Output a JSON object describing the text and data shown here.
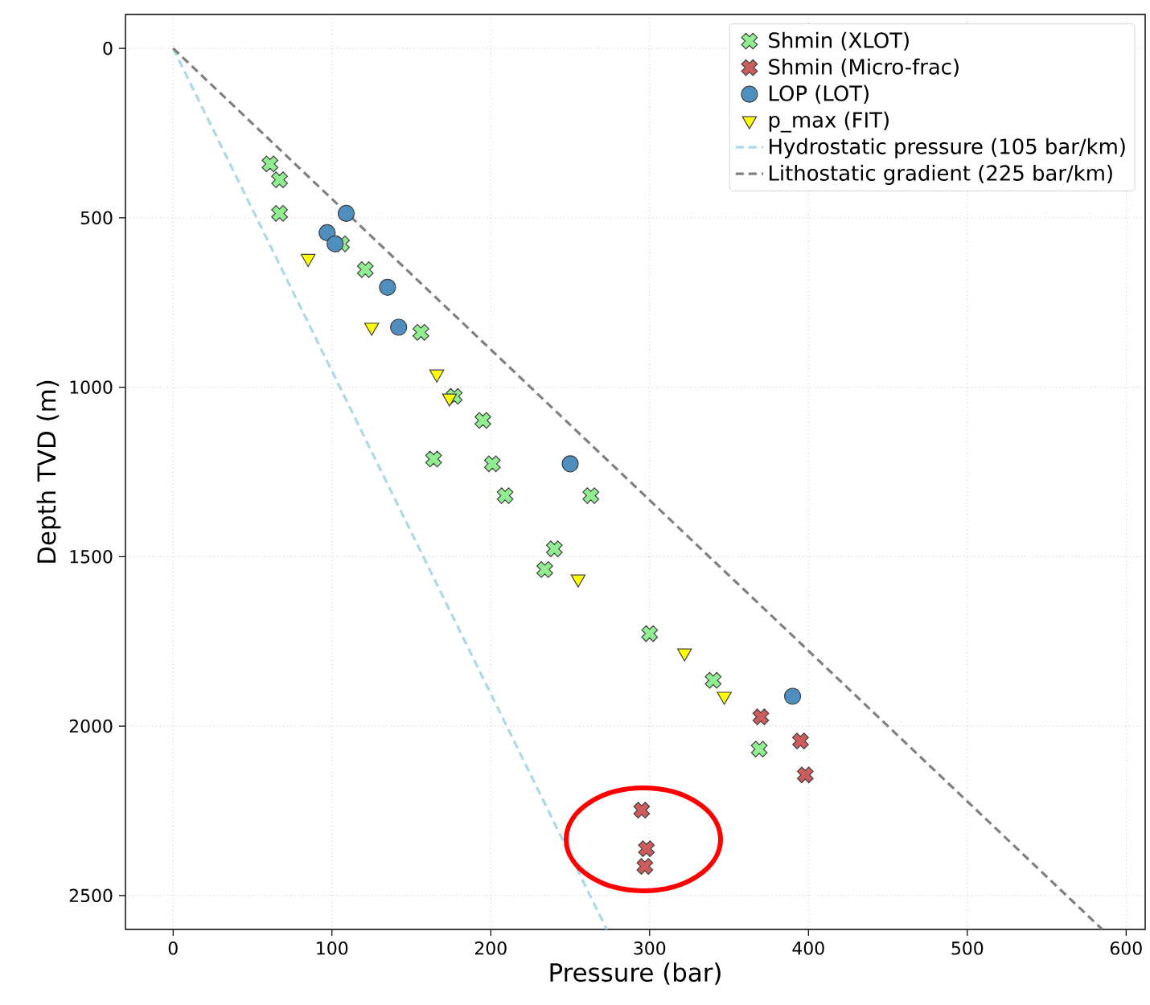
{
  "chart_data": {
    "type": "scatter",
    "xlabel": "Pressure (bar)",
    "ylabel": "Depth TVD (m)",
    "xlim": [
      -30,
      612
    ],
    "ylim": [
      2600,
      -100
    ],
    "xticks": [
      0,
      100,
      200,
      300,
      400,
      500,
      600
    ],
    "yticks": [
      0,
      500,
      1000,
      1500,
      2000,
      2500
    ],
    "grid": true,
    "legend": "top right",
    "series": [
      {
        "name": "Shmin (XLOT)",
        "marker": "cross",
        "color": "#90ee90",
        "x": [
          61,
          67,
          67,
          106,
          121,
          156,
          177,
          195,
          164,
          201,
          209,
          263,
          240,
          234,
          300,
          340,
          369
        ],
        "values": [
          341,
          388,
          487,
          577,
          653,
          838,
          1027,
          1098,
          1212,
          1226,
          1320,
          1320,
          1477,
          1538,
          1727,
          1865,
          2068
        ]
      },
      {
        "name": "Shmin (Micro-frac)",
        "marker": "cross",
        "color": "#cd5c5c",
        "x": [
          370,
          395,
          398,
          295,
          298,
          297
        ],
        "values": [
          1973,
          2044,
          2144,
          2248,
          2362,
          2414
        ]
      },
      {
        "name": "LOP (LOT)",
        "marker": "circle",
        "color": "#4f8fc0",
        "x": [
          109,
          97,
          102,
          135,
          142,
          250,
          390
        ],
        "values": [
          487,
          544,
          577,
          705,
          823,
          1226,
          1912
        ]
      },
      {
        "name": "p_max (FIT)",
        "marker": "triangle",
        "color": "#ffff00",
        "x": [
          85,
          125,
          166,
          174,
          255,
          322,
          347
        ],
        "values": [
          620,
          823,
          961,
          1032,
          1566,
          1784,
          1912
        ]
      },
      {
        "name": "Hydrostatic pressure (105 bar/km)",
        "type": "line",
        "marker": "none",
        "line_style": "dashed",
        "color": "#add8e6",
        "x": [
          0,
          273
        ],
        "values": [
          0,
          2600
        ]
      },
      {
        "name": "Lithostatic gradient (225 bar/km)",
        "type": "line",
        "marker": "none",
        "line_style": "dashed",
        "color": "#808080",
        "x": [
          0,
          585
        ],
        "values": [
          0,
          2600
        ]
      }
    ]
  }
}
